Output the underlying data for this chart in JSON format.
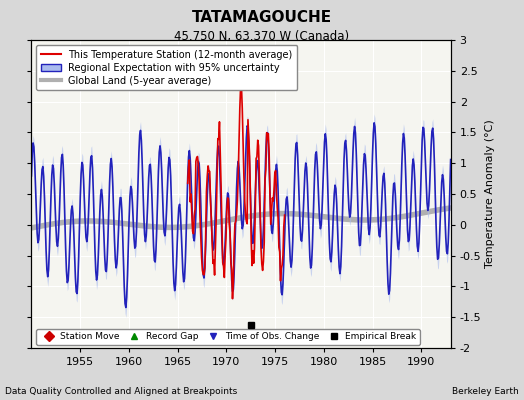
{
  "title": "TATAMAGOUCHE",
  "subtitle": "45.750 N, 63.370 W (Canada)",
  "ylabel": "Temperature Anomaly (°C)",
  "xlabel_note": "Data Quality Controlled and Aligned at Breakpoints",
  "credit": "Berkeley Earth",
  "xlim": [
    1950,
    1993
  ],
  "ylim": [
    -2.0,
    3.0
  ],
  "yticks": [
    -2,
    -1.5,
    -1,
    -0.5,
    0,
    0.5,
    1,
    1.5,
    2,
    2.5,
    3
  ],
  "xticks": [
    1955,
    1960,
    1965,
    1970,
    1975,
    1980,
    1985,
    1990
  ],
  "background_color": "#d8d8d8",
  "plot_bg_color": "#f5f5f0",
  "regional_color": "#2222bb",
  "regional_band_color": "#aabbee",
  "station_color": "#dd0000",
  "global_color": "#b0b0b0",
  "legend_labels": [
    "This Temperature Station (12-month average)",
    "Regional Expectation with 95% uncertainty",
    "Global Land (5-year average)"
  ],
  "marker_items": [
    {
      "label": "Station Move",
      "color": "#cc0000",
      "marker": "D"
    },
    {
      "label": "Record Gap",
      "color": "#008800",
      "marker": "^"
    },
    {
      "label": "Time of Obs. Change",
      "color": "#2222bb",
      "marker": "v"
    },
    {
      "label": "Empirical Break",
      "color": "#000000",
      "marker": "s"
    }
  ],
  "empirical_break_x": 1972.5,
  "empirical_break_y": -1.62,
  "red_start_year": 1966.0,
  "red_end_year": 1976.0,
  "seed": 123
}
